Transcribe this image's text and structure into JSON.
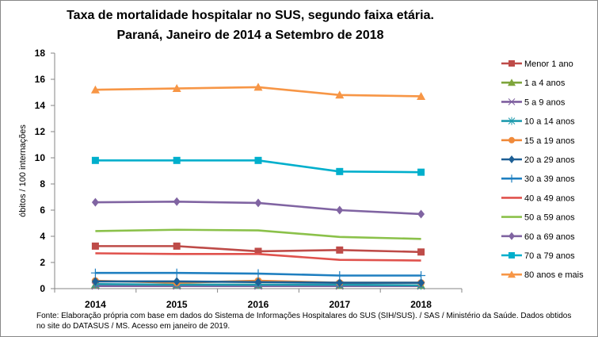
{
  "chart_data": {
    "type": "line",
    "title": "Taxa de mortalidade hospitalar no SUS, segundo faixa etária.",
    "subtitle": "Paraná, Janeiro de 2014 a Setembro de 2018",
    "ylabel": "óbitos / 100 internações",
    "xlabel": "",
    "categories": [
      "2014",
      "2015",
      "2016",
      "2017",
      "2018"
    ],
    "ylim": [
      0,
      18
    ],
    "yticks": [
      0,
      2,
      4,
      6,
      8,
      10,
      12,
      14,
      16,
      18
    ],
    "grid": false,
    "legend_position": "right",
    "series": [
      {
        "name": "Menor 1 ano",
        "color": "#be4b48",
        "marker": "square",
        "values": [
          3.25,
          3.25,
          2.85,
          2.95,
          2.8
        ]
      },
      {
        "name": "1 a 4 anos",
        "color": "#7ea53b",
        "marker": "triangle",
        "values": [
          0.3,
          0.3,
          0.3,
          0.25,
          0.25
        ]
      },
      {
        "name": "5 a 9 anos",
        "color": "#7e5f9f",
        "marker": "x",
        "values": [
          0.2,
          0.2,
          0.2,
          0.2,
          0.2
        ]
      },
      {
        "name": "10 a 14 anos",
        "color": "#1f9bae",
        "marker": "star",
        "values": [
          0.35,
          0.3,
          0.3,
          0.3,
          0.25
        ]
      },
      {
        "name": "15 a 19 anos",
        "color": "#f08a3a",
        "marker": "circle",
        "values": [
          0.6,
          0.45,
          0.6,
          0.45,
          0.45
        ]
      },
      {
        "name": "20 a 29 anos",
        "color": "#1d5f95",
        "marker": "diamond",
        "values": [
          0.55,
          0.55,
          0.5,
          0.45,
          0.45
        ]
      },
      {
        "name": "30 a 39 anos",
        "color": "#1f7fc0",
        "marker": "plus",
        "values": [
          1.2,
          1.2,
          1.15,
          1.0,
          1.0
        ]
      },
      {
        "name": "40 a 49 anos",
        "color": "#e0524d",
        "marker": "none",
        "values": [
          2.7,
          2.65,
          2.65,
          2.2,
          2.15
        ]
      },
      {
        "name": "50 a 59 anos",
        "color": "#8bc14a",
        "marker": "none",
        "values": [
          4.4,
          4.5,
          4.45,
          3.95,
          3.8
        ]
      },
      {
        "name": "60 a 69 anos",
        "color": "#8064a2",
        "marker": "diamond",
        "values": [
          6.6,
          6.65,
          6.55,
          6.0,
          5.7
        ]
      },
      {
        "name": "70 a 79 anos",
        "color": "#00afcc",
        "marker": "square",
        "values": [
          9.8,
          9.8,
          9.8,
          8.95,
          8.9
        ]
      },
      {
        "name": "80 anos e mais",
        "color": "#f79646",
        "marker": "triangle",
        "values": [
          15.2,
          15.3,
          15.4,
          14.8,
          14.7
        ]
      }
    ]
  },
  "footnote": "Fonte: Elaboração própria com base em dados do  Sistema de Informações Hospitalares do SUS (SIH/SUS). / SAS / Ministério da Saúde. Dados obtidos no site do DATASUS / MS. Acesso em janeiro de 2019."
}
